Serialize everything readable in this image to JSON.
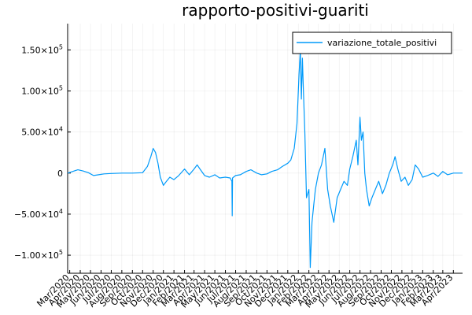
{
  "chart_data": {
    "type": "line",
    "title": "rapporto-positivi-guariti",
    "xlabel": "",
    "ylabel": "",
    "grid": true,
    "legend_placement": "top-right",
    "series_color": "#009AFA",
    "series": [
      {
        "name": "variazione_totale_positivi",
        "x": [
          "2020-02-24",
          "2020-03-10",
          "2020-03-25",
          "2020-04-10",
          "2020-04-25",
          "2020-05-10",
          "2020-05-25",
          "2020-06-10",
          "2020-07-01",
          "2020-08-01",
          "2020-09-01",
          "2020-10-01",
          "2020-10-15",
          "2020-10-25",
          "2020-11-01",
          "2020-11-08",
          "2020-11-15",
          "2020-11-22",
          "2020-12-01",
          "2020-12-10",
          "2020-12-20",
          "2021-01-01",
          "2021-01-15",
          "2021-02-01",
          "2021-02-15",
          "2021-03-01",
          "2021-03-10",
          "2021-03-20",
          "2021-04-01",
          "2021-04-15",
          "2021-05-01",
          "2021-05-15",
          "2021-06-01",
          "2021-06-15",
          "2021-06-20",
          "2021-06-21",
          "2021-06-22",
          "2021-07-01",
          "2021-07-15",
          "2021-08-01",
          "2021-08-15",
          "2021-09-01",
          "2021-09-15",
          "2021-10-01",
          "2021-10-15",
          "2021-11-01",
          "2021-11-15",
          "2021-12-01",
          "2021-12-10",
          "2021-12-20",
          "2021-12-28",
          "2022-01-03",
          "2022-01-07",
          "2022-01-10",
          "2022-01-13",
          "2022-01-16",
          "2022-01-20",
          "2022-01-25",
          "2022-02-01",
          "2022-02-05",
          "2022-02-10",
          "2022-02-15",
          "2022-02-20",
          "2022-03-01",
          "2022-03-10",
          "2022-03-20",
          "2022-03-28",
          "2022-04-05",
          "2022-04-15",
          "2022-04-25",
          "2022-05-05",
          "2022-05-15",
          "2022-05-25",
          "2022-06-01",
          "2022-06-10",
          "2022-06-20",
          "2022-06-25",
          "2022-07-01",
          "2022-07-05",
          "2022-07-10",
          "2022-07-15",
          "2022-07-20",
          "2022-07-28",
          "2022-08-05",
          "2022-08-15",
          "2022-08-25",
          "2022-09-05",
          "2022-09-15",
          "2022-09-25",
          "2022-10-05",
          "2022-10-12",
          "2022-10-20",
          "2022-10-30",
          "2022-11-10",
          "2022-11-20",
          "2022-12-01",
          "2022-12-10",
          "2022-12-20",
          "2023-01-01",
          "2023-01-15",
          "2023-02-01",
          "2023-02-15",
          "2023-03-01",
          "2023-03-15",
          "2023-04-01",
          "2023-04-15",
          "2023-04-28"
        ],
        "values": [
          0,
          2000,
          4000,
          2500,
          500,
          -3000,
          -2000,
          -1000,
          -500,
          0,
          0,
          500,
          8000,
          20000,
          30000,
          25000,
          12000,
          -5000,
          -15000,
          -10000,
          -5000,
          -8000,
          -3000,
          5000,
          -2000,
          5000,
          10000,
          4000,
          -3000,
          -5000,
          -2000,
          -6000,
          -5000,
          -6000,
          -10000,
          -52000,
          -6000,
          -3000,
          -2000,
          2000,
          4000,
          0,
          -2000,
          -1000,
          2000,
          4000,
          8000,
          12000,
          16000,
          30000,
          60000,
          120000,
          150000,
          90000,
          140000,
          100000,
          50000,
          -30000,
          -20000,
          -115000,
          -60000,
          -40000,
          -20000,
          0,
          10000,
          30000,
          -20000,
          -40000,
          -60000,
          -30000,
          -20000,
          -10000,
          -15000,
          5000,
          20000,
          40000,
          10000,
          68000,
          40000,
          50000,
          0,
          -20000,
          -40000,
          -30000,
          -20000,
          -10000,
          -25000,
          -15000,
          0,
          10000,
          20000,
          5000,
          -10000,
          -5000,
          -15000,
          -8000,
          10000,
          5000,
          -5000,
          -3000,
          0,
          -4000,
          2000,
          -2000,
          0,
          0,
          0
        ]
      }
    ],
    "y_ticks": [
      {
        "value": -100000,
        "label": "−1.00×10"
      },
      {
        "value": -50000,
        "label": "−5.00×10"
      },
      {
        "value": 0,
        "label": "0"
      },
      {
        "value": 50000,
        "label": "5.00×10"
      },
      {
        "value": 100000,
        "label": "1.00×10"
      },
      {
        "value": 150000,
        "label": "1.50×10"
      }
    ],
    "y_tick_exponents": [
      "5",
      "4",
      "",
      "4",
      "5",
      "5"
    ],
    "x_ticks": [
      {
        "date": "2020-03-01",
        "label": "Mar/2020"
      },
      {
        "date": "2020-04-01",
        "label": "Apr/2020"
      },
      {
        "date": "2020-05-01",
        "label": "May/2020"
      },
      {
        "date": "2020-06-01",
        "label": "Jun/2020"
      },
      {
        "date": "2020-07-01",
        "label": "Jul/2020"
      },
      {
        "date": "2020-08-01",
        "label": "Aug/2020"
      },
      {
        "date": "2020-09-01",
        "label": "Sep/2020"
      },
      {
        "date": "2020-10-01",
        "label": "Oct/2020"
      },
      {
        "date": "2020-11-01",
        "label": "Nov/2020"
      },
      {
        "date": "2020-12-01",
        "label": "Dec/2020"
      },
      {
        "date": "2021-01-01",
        "label": "Jan/2021"
      },
      {
        "date": "2021-02-01",
        "label": "Feb/2021"
      },
      {
        "date": "2021-03-01",
        "label": "Mar/2021"
      },
      {
        "date": "2021-04-01",
        "label": "Apr/2021"
      },
      {
        "date": "2021-05-01",
        "label": "May/2021"
      },
      {
        "date": "2021-06-01",
        "label": "Jun/2021"
      },
      {
        "date": "2021-07-01",
        "label": "Jul/2021"
      },
      {
        "date": "2021-08-01",
        "label": "Aug/2021"
      },
      {
        "date": "2021-09-01",
        "label": "Sep/2021"
      },
      {
        "date": "2021-10-01",
        "label": "Oct/2021"
      },
      {
        "date": "2021-11-01",
        "label": "Nov/2021"
      },
      {
        "date": "2021-12-01",
        "label": "Dec/2021"
      },
      {
        "date": "2022-01-01",
        "label": "Jan/2022"
      },
      {
        "date": "2022-02-01",
        "label": "Feb/2022"
      },
      {
        "date": "2022-03-01",
        "label": "Mar/2022"
      },
      {
        "date": "2022-04-01",
        "label": "Apr/2022"
      },
      {
        "date": "2022-05-01",
        "label": "May/2022"
      },
      {
        "date": "2022-06-01",
        "label": "Jun/2022"
      },
      {
        "date": "2022-07-01",
        "label": "Jul/2022"
      },
      {
        "date": "2022-08-01",
        "label": "Aug/2022"
      },
      {
        "date": "2022-09-01",
        "label": "Sep/2022"
      },
      {
        "date": "2022-10-01",
        "label": "Oct/2022"
      },
      {
        "date": "2022-11-01",
        "label": "Nov/2022"
      },
      {
        "date": "2022-12-01",
        "label": "Dec/2022"
      },
      {
        "date": "2023-01-01",
        "label": "Jan/2023"
      },
      {
        "date": "2023-02-01",
        "label": "Feb/2023"
      },
      {
        "date": "2023-03-01",
        "label": "Mar/2023"
      },
      {
        "date": "2023-04-01",
        "label": "Apr/2023"
      }
    ],
    "xlim": [
      "2020-02-24",
      "2023-04-28"
    ],
    "ylim": [
      -122000,
      182000
    ]
  }
}
